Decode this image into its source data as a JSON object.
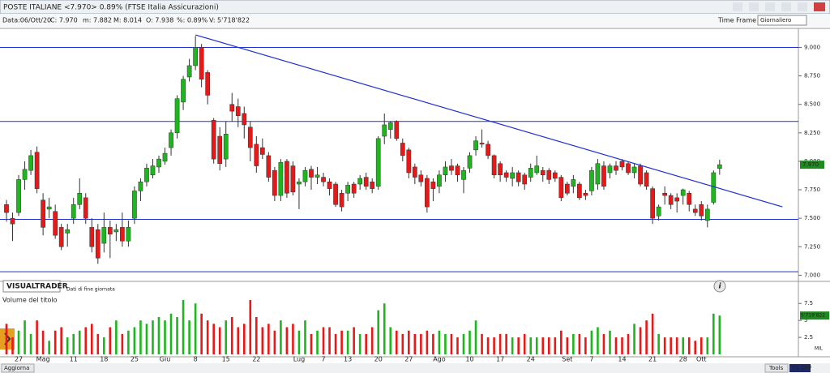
{
  "header": {
    "title": "POSTE ITALIANE <7.970> 0.89%   (FTSE Italia Assicurazioni)",
    "date": "Data:06/Ott/20",
    "close": "C: 7.970",
    "min": "m: 7.882",
    "max": "M: 8.014",
    "open": "O: 7.938",
    "pct": "%: 0.89%",
    "volume": "V: 5'718'822",
    "time_frame": "Time Frame",
    "period": "Giornaliero"
  },
  "watermark": {
    "brand": "VISUALTRADER",
    "note": "Dati di fine giornata"
  },
  "footer": {
    "update": "Aggiorna",
    "tools": "Tools",
    "ts": "TS OFF"
  },
  "chart_data": {
    "type": "candlestick",
    "categories": [
      null,
      null,
      "27",
      null,
      null,
      null,
      "Mag",
      null,
      null,
      null,
      null,
      "11",
      null,
      null,
      null,
      null,
      "18",
      null,
      null,
      null,
      null,
      "25",
      null,
      null,
      null,
      null,
      "Giu",
      null,
      null,
      null,
      null,
      "8",
      null,
      null,
      null,
      null,
      "15",
      null,
      null,
      null,
      null,
      "22",
      null,
      null,
      null,
      null,
      null,
      null,
      "Lug",
      null,
      null,
      null,
      "7",
      null,
      null,
      null,
      "13",
      null,
      null,
      null,
      null,
      "20",
      null,
      null,
      null,
      null,
      "27",
      null,
      null,
      null,
      null,
      "Ago",
      null,
      null,
      null,
      null,
      "10",
      null,
      null,
      null,
      null,
      "17",
      null,
      null,
      null,
      null,
      "24",
      null,
      null,
      null,
      null,
      null,
      "Set",
      null,
      null,
      null,
      "7",
      null,
      null,
      null,
      null,
      "14",
      null,
      null,
      null,
      null,
      "21",
      null,
      null,
      null,
      null,
      "28",
      null,
      null,
      "Ott",
      null,
      null,
      null
    ],
    "open": [
      7.62,
      7.5,
      7.55,
      7.84,
      7.92,
      8.08,
      7.66,
      7.58,
      7.56,
      7.42,
      7.37,
      7.5,
      7.62,
      7.68,
      7.42,
      7.4,
      7.28,
      7.42,
      7.38,
      7.42,
      7.3,
      7.5,
      7.74,
      7.82,
      7.88,
      7.95,
      8.0,
      8.12,
      8.25,
      8.52,
      8.74,
      8.84,
      9.0,
      8.78,
      8.36,
      8.22,
      8.02,
      8.5,
      8.48,
      8.42,
      8.3,
      8.15,
      8.12,
      8.05,
      7.92,
      7.7,
      8.0,
      7.96,
      7.8,
      7.82,
      7.93,
      7.86,
      7.86,
      7.82,
      7.8,
      7.72,
      7.72,
      7.8,
      7.8,
      7.86,
      7.82,
      7.78,
      8.22,
      8.28,
      8.35,
      8.16,
      8.1,
      7.95,
      7.88,
      7.85,
      7.82,
      7.78,
      7.88,
      7.96,
      7.96,
      7.84,
      7.94,
      8.1,
      8.16,
      8.15,
      8.05,
      7.98,
      7.9,
      7.85,
      7.9,
      7.88,
      7.86,
      7.9,
      7.92,
      7.92,
      7.9,
      7.86,
      7.8,
      7.78,
      7.8,
      7.72,
      7.74,
      7.8,
      7.96,
      7.9,
      7.96,
      8.0,
      7.98,
      7.9,
      7.96,
      7.9,
      7.76,
      7.52,
      7.72,
      7.7,
      7.68,
      7.7,
      7.72,
      7.58,
      7.62,
      7.48,
      7.64,
      7.938
    ],
    "high": [
      7.66,
      7.55,
      7.88,
      8.0,
      8.1,
      8.13,
      7.72,
      7.68,
      7.62,
      7.45,
      7.45,
      7.68,
      7.85,
      7.72,
      7.5,
      7.45,
      7.55,
      7.48,
      7.45,
      7.55,
      7.48,
      7.78,
      7.85,
      7.98,
      8.02,
      8.05,
      8.12,
      8.28,
      8.58,
      8.75,
      8.9,
      9.1,
      9.03,
      8.8,
      8.38,
      8.3,
      8.35,
      8.6,
      8.55,
      8.48,
      8.35,
      8.22,
      8.2,
      8.08,
      7.95,
      8.02,
      8.02,
      8.0,
      7.85,
      7.95,
      7.96,
      7.95,
      7.9,
      7.85,
      7.82,
      7.75,
      7.82,
      7.82,
      7.88,
      7.9,
      7.85,
      8.22,
      8.42,
      8.35,
      8.36,
      8.2,
      8.12,
      7.98,
      7.92,
      7.88,
      7.85,
      7.92,
      8.0,
      8.02,
      7.98,
      7.95,
      8.08,
      8.22,
      8.28,
      8.18,
      8.06,
      8.0,
      7.92,
      7.95,
      7.92,
      7.9,
      7.98,
      8.05,
      7.95,
      7.94,
      7.92,
      7.88,
      7.82,
      7.88,
      7.82,
      7.75,
      7.95,
      8.02,
      8.0,
      7.98,
      8.0,
      8.02,
      8.0,
      7.98,
      7.98,
      7.92,
      7.78,
      7.62,
      7.78,
      7.72,
      7.72,
      7.76,
      7.74,
      7.62,
      7.65,
      7.62,
      7.92,
      8.014
    ],
    "low": [
      7.47,
      7.3,
      7.52,
      7.75,
      7.88,
      7.72,
      7.35,
      7.5,
      7.32,
      7.22,
      7.25,
      7.45,
      7.58,
      7.45,
      7.2,
      7.1,
      7.2,
      7.15,
      7.3,
      7.25,
      7.25,
      7.45,
      7.65,
      7.78,
      7.85,
      7.9,
      7.97,
      8.05,
      8.2,
      8.45,
      8.7,
      8.8,
      8.65,
      8.5,
      7.98,
      7.92,
      7.95,
      8.35,
      8.3,
      8.2,
      8.0,
      7.9,
      8.02,
      7.82,
      7.65,
      7.65,
      7.68,
      7.7,
      7.58,
      7.78,
      7.75,
      7.8,
      7.78,
      7.7,
      7.6,
      7.56,
      7.65,
      7.68,
      7.75,
      7.75,
      7.72,
      7.75,
      8.15,
      8.2,
      8.18,
      8.0,
      7.85,
      7.8,
      7.78,
      7.55,
      7.65,
      7.72,
      7.82,
      7.88,
      7.82,
      7.72,
      7.9,
      8.05,
      8.12,
      8.02,
      7.85,
      7.82,
      7.82,
      7.78,
      7.78,
      7.75,
      7.82,
      7.88,
      7.82,
      7.8,
      7.82,
      7.65,
      7.7,
      7.72,
      7.66,
      7.66,
      7.7,
      7.75,
      7.75,
      7.85,
      7.88,
      7.92,
      7.88,
      7.85,
      7.78,
      7.75,
      7.45,
      7.48,
      7.62,
      7.58,
      7.55,
      7.62,
      7.56,
      7.52,
      7.48,
      7.42,
      7.62,
      7.882
    ],
    "close": [
      7.55,
      7.45,
      7.84,
      7.93,
      8.05,
      7.76,
      7.42,
      7.6,
      7.35,
      7.25,
      7.4,
      7.62,
      7.72,
      7.5,
      7.25,
      7.15,
      7.42,
      7.36,
      7.4,
      7.3,
      7.42,
      7.74,
      7.82,
      7.94,
      7.96,
      8.02,
      8.07,
      8.25,
      8.55,
      8.72,
      8.84,
      9.0,
      8.72,
      8.58,
      8.02,
      7.98,
      8.24,
      8.44,
      8.4,
      8.32,
      8.12,
      7.96,
      8.06,
      7.86,
      7.7,
      7.99,
      7.72,
      7.73,
      7.82,
      7.92,
      7.86,
      7.88,
      7.82,
      7.76,
      7.62,
      7.6,
      7.79,
      7.72,
      7.85,
      7.78,
      7.76,
      8.2,
      8.32,
      8.34,
      8.2,
      8.05,
      7.9,
      7.86,
      7.82,
      7.6,
      7.76,
      7.88,
      7.95,
      7.92,
      7.88,
      7.92,
      8.05,
      8.18,
      8.15,
      8.05,
      7.88,
      7.88,
      7.86,
      7.9,
      7.82,
      7.8,
      7.94,
      7.96,
      7.88,
      7.84,
      7.85,
      7.68,
      7.72,
      7.84,
      7.68,
      7.7,
      7.92,
      7.98,
      7.78,
      7.96,
      7.92,
      7.95,
      7.9,
      7.95,
      7.8,
      7.78,
      7.5,
      7.6,
      7.7,
      7.62,
      7.65,
      7.75,
      7.62,
      7.55,
      7.52,
      7.58,
      7.9,
      7.97
    ],
    "up_color": "#1fb51f",
    "down_color": "#e81818",
    "ylim": [
      6.96,
      9.16
    ],
    "yticks": [
      {
        "value": 7,
        "label": "7.000"
      },
      {
        "value": 7.25,
        "label": "7.250"
      },
      {
        "value": 7.5,
        "label": "7.500"
      },
      {
        "value": 7.75,
        "label": "7.750"
      },
      {
        "value": 8,
        "label": "8.000"
      },
      {
        "value": 8.25,
        "label": "8.250"
      },
      {
        "value": 8.5,
        "label": "8.500"
      },
      {
        "value": 8.75,
        "label": "8.750"
      },
      {
        "value": 9,
        "label": "9.000"
      }
    ],
    "last_close": 7.97,
    "last_close_label": "7.970",
    "levels": [
      9.0,
      8.35,
      7.49,
      7.03
    ],
    "level_color": "#2030d0",
    "trendline": {
      "x": [
        31,
        127.3
      ],
      "y": [
        9.11,
        7.6
      ]
    },
    "volume": {
      "title": "Volume del titolo",
      "unit": "MIL",
      "values": [
        4.5,
        2.5,
        3.5,
        5,
        3,
        5,
        3.5,
        2,
        3.5,
        4,
        2.5,
        3,
        3.5,
        4,
        4.5,
        3,
        2.5,
        4,
        5,
        3,
        3.5,
        4,
        5,
        4.5,
        5,
        5.5,
        5,
        6,
        5.5,
        8,
        5,
        7.5,
        6,
        5,
        4.5,
        4,
        5,
        5.5,
        4,
        4.5,
        8,
        5.5,
        4,
        4.5,
        3.5,
        5,
        4,
        4.5,
        3.5,
        5,
        3,
        3.5,
        4,
        4,
        3,
        3.5,
        3.5,
        4,
        3,
        3,
        4,
        6.5,
        7.5,
        4,
        3.5,
        3,
        3.5,
        3,
        3,
        3.5,
        3,
        3.5,
        3,
        3,
        2.5,
        3,
        3.5,
        5,
        3,
        2.5,
        2.5,
        3,
        3,
        2.5,
        2.5,
        3,
        2.5,
        2.5,
        2.5,
        2.5,
        2.5,
        3.5,
        2.5,
        3,
        3,
        2.5,
        3.5,
        4,
        3,
        3.5,
        2.5,
        2.5,
        3,
        4.5,
        4,
        5,
        6,
        3,
        2.5,
        2.5,
        2.5,
        2.5,
        2.5,
        2,
        2.5,
        2.5,
        6,
        5.718822
      ],
      "last_label": "5'718'822",
      "ylim": [
        0,
        9.2
      ],
      "yticks": [
        2.5,
        5,
        7.5
      ]
    }
  }
}
